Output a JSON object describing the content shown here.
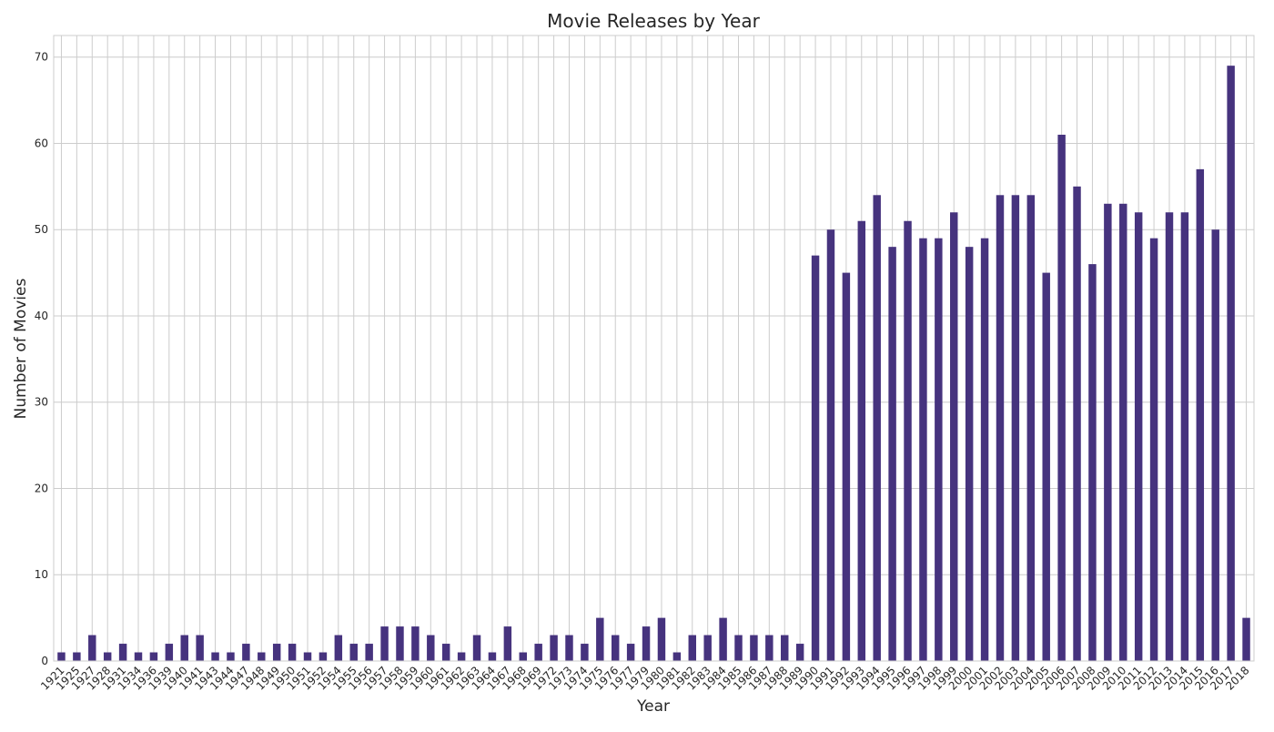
{
  "chart_data": {
    "type": "bar",
    "title": "Movie Releases by Year",
    "xlabel": "Year",
    "ylabel": "Number of Movies",
    "ylim": [
      0,
      72.5
    ],
    "yticks": [
      0,
      10,
      20,
      30,
      40,
      50,
      60,
      70
    ],
    "grid": true,
    "legend": "none",
    "bar_color": "#46337e",
    "categories": [
      "1921",
      "1925",
      "1927",
      "1928",
      "1931",
      "1934",
      "1936",
      "1939",
      "1940",
      "1941",
      "1943",
      "1944",
      "1947",
      "1948",
      "1949",
      "1950",
      "1951",
      "1952",
      "1954",
      "1955",
      "1956",
      "1957",
      "1958",
      "1959",
      "1960",
      "1961",
      "1962",
      "1963",
      "1964",
      "1967",
      "1968",
      "1969",
      "1972",
      "1973",
      "1974",
      "1975",
      "1976",
      "1977",
      "1979",
      "1980",
      "1981",
      "1982",
      "1983",
      "1984",
      "1985",
      "1986",
      "1987",
      "1988",
      "1989",
      "1990",
      "1991",
      "1992",
      "1993",
      "1994",
      "1995",
      "1996",
      "1997",
      "1998",
      "1999",
      "2000",
      "2001",
      "2002",
      "2003",
      "2004",
      "2005",
      "2006",
      "2007",
      "2008",
      "2009",
      "2010",
      "2011",
      "2012",
      "2013",
      "2014",
      "2015",
      "2016",
      "2017",
      "2018"
    ],
    "values": [
      1,
      1,
      3,
      1,
      2,
      1,
      1,
      2,
      3,
      3,
      1,
      1,
      2,
      1,
      2,
      2,
      1,
      1,
      3,
      2,
      2,
      4,
      4,
      4,
      3,
      2,
      1,
      3,
      1,
      4,
      1,
      2,
      3,
      3,
      2,
      5,
      3,
      2,
      4,
      5,
      1,
      3,
      3,
      5,
      3,
      3,
      3,
      3,
      2,
      47,
      50,
      45,
      51,
      54,
      48,
      51,
      49,
      49,
      52,
      48,
      49,
      54,
      54,
      54,
      45,
      61,
      55,
      46,
      53,
      53,
      52,
      49,
      52,
      52,
      57,
      50,
      69,
      5
    ]
  }
}
